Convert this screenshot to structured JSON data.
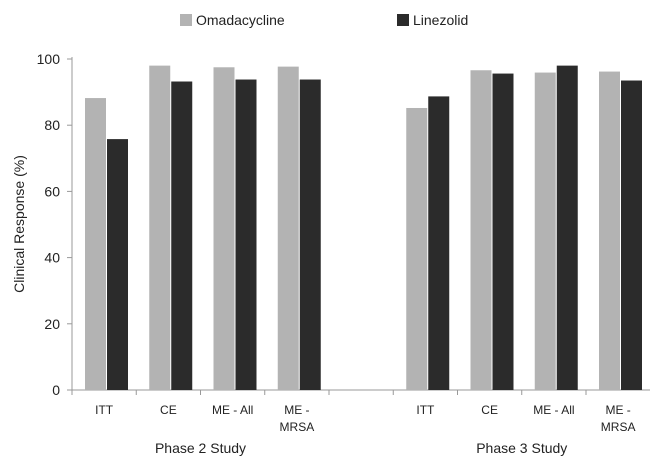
{
  "chart_data": {
    "type": "bar",
    "groups": [
      {
        "label": "Phase 2 Study",
        "categories": [
          "ITT",
          "CE",
          "ME - All",
          [
            "ME -",
            "MRSA"
          ]
        ]
      },
      {
        "label": "Phase 3 Study",
        "categories": [
          "ITT",
          "CE",
          "ME - All",
          [
            "ME -",
            "MRSA"
          ]
        ]
      }
    ],
    "series": [
      {
        "name": "Omadacycline",
        "color": "#b3b3b3",
        "values": [
          88.2,
          98.0,
          97.5,
          97.7,
          85.2,
          96.6,
          95.9,
          96.2
        ]
      },
      {
        "name": "Linezolid",
        "color": "#2b2b2b",
        "values": [
          75.8,
          93.2,
          93.8,
          93.8,
          88.7,
          95.6,
          98.0,
          93.5
        ]
      }
    ],
    "ylabel": "Clinical Response (%)",
    "ylim": [
      0,
      100
    ],
    "yticks": [
      0,
      20,
      40,
      60,
      80,
      100
    ],
    "legend_position": "top",
    "grid": false
  }
}
